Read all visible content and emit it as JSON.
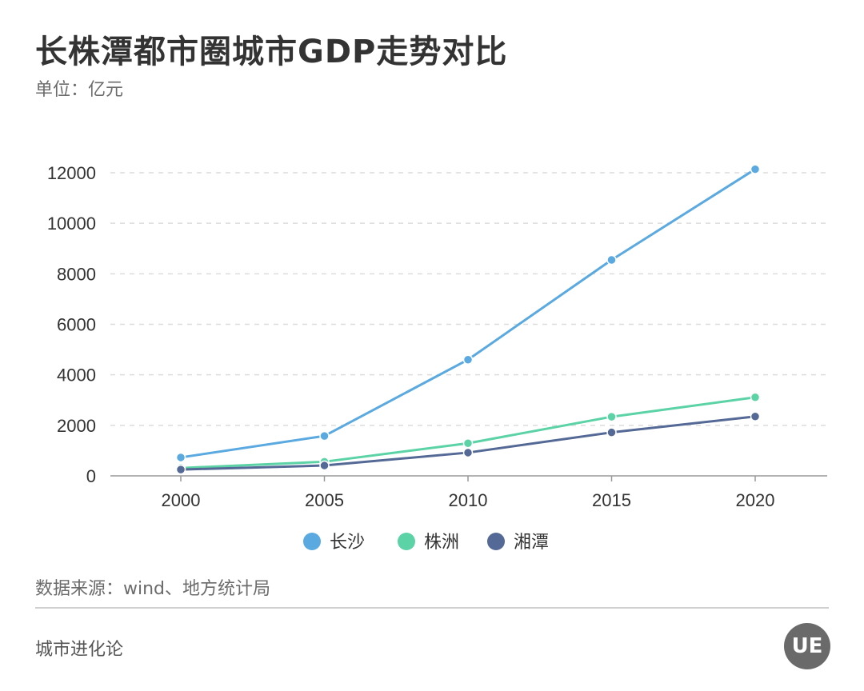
{
  "title": "长株潭都市圈城市GDP走势对比",
  "unit": "单位：亿元",
  "source": "数据来源：wind、地方统计局",
  "brand": "城市进化论",
  "logo_text": "UE",
  "chart_data": {
    "type": "line",
    "title": "长株潭都市圈城市GDP走势对比",
    "xlabel": "",
    "ylabel": "",
    "x": [
      "2000",
      "2005",
      "2010",
      "2015",
      "2020"
    ],
    "ylim": [
      0,
      12000
    ],
    "yticks": [
      "0",
      "2000",
      "4000",
      "6000",
      "8000",
      "10000",
      "12000"
    ],
    "grid": true,
    "legend_position": "bottom",
    "series": [
      {
        "name": "长沙",
        "color": "#5aa9e0",
        "values": [
          730,
          1580,
          4600,
          8550,
          12140
        ]
      },
      {
        "name": "株洲",
        "color": "#5cd3a6",
        "values": [
          310,
          560,
          1290,
          2340,
          3110
        ]
      },
      {
        "name": "湘潭",
        "color": "#556996",
        "values": [
          250,
          410,
          920,
          1720,
          2350
        ]
      }
    ]
  }
}
